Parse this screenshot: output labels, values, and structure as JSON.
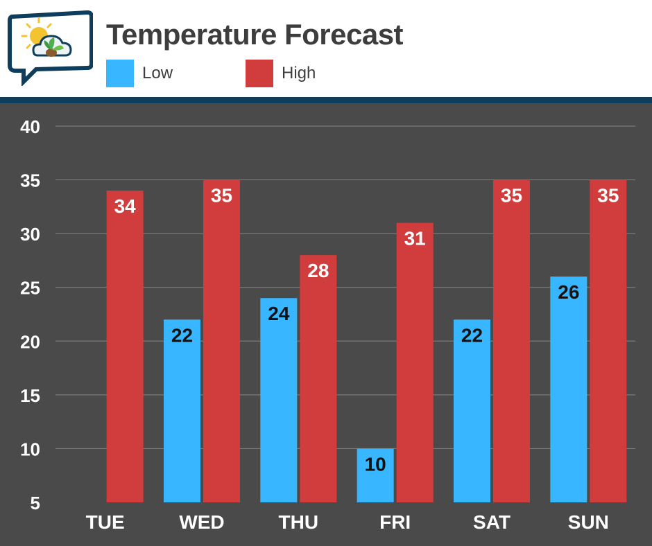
{
  "chart_data": {
    "type": "bar",
    "title": "Temperature Forecast",
    "categories": [
      "TUE",
      "WED",
      "THU",
      "FRI",
      "SAT",
      "SUN"
    ],
    "series": [
      {
        "name": "Low",
        "color": "#38b6ff",
        "label_color": "#111111",
        "values": [
          null,
          22,
          24,
          10,
          22,
          26
        ]
      },
      {
        "name": "High",
        "color": "#d13d3d",
        "label_color": "#ffffff",
        "values": [
          34,
          35,
          28,
          31,
          35,
          35
        ]
      }
    ],
    "ylim": [
      5,
      40
    ],
    "yticks": [
      5,
      10,
      15,
      20,
      25,
      30,
      35,
      40
    ],
    "grid": true,
    "legend_position": "top-left",
    "xlabel": "",
    "ylabel": ""
  },
  "logo": {
    "icon": "weather-sun-cloud-plant-icon"
  }
}
